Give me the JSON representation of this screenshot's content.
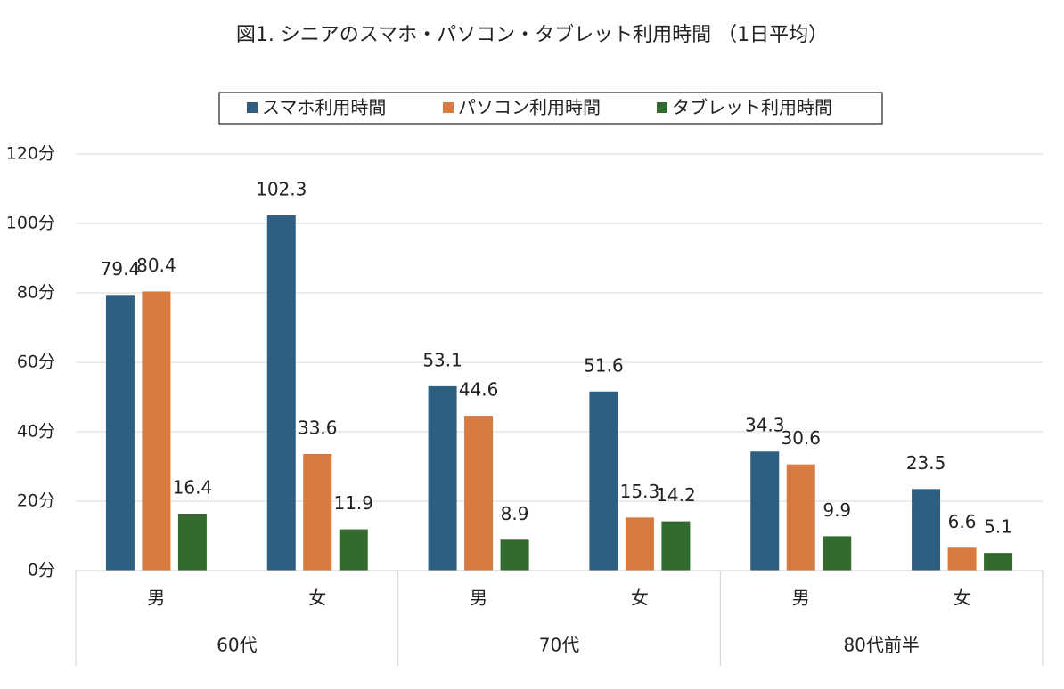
{
  "chart_data": {
    "type": "bar",
    "title": "図1. シニアのスマホ・パソコン・タブレット利用時間 （1日平均）",
    "categories": [
      "男",
      "女",
      "男",
      "女",
      "男",
      "女"
    ],
    "group_labels": [
      "60代",
      "70代",
      "80代前半"
    ],
    "series": [
      {
        "name": "スマホ利用時間",
        "color": "#2e5f80",
        "values": [
          79.4,
          102.3,
          53.1,
          51.6,
          34.3,
          23.5
        ]
      },
      {
        "name": "パソコン利用時間",
        "color": "#d97a40",
        "values": [
          80.4,
          33.6,
          44.6,
          15.3,
          30.6,
          6.6
        ]
      },
      {
        "name": "タブレット利用時間",
        "color": "#336b2e",
        "values": [
          16.4,
          11.9,
          8.9,
          14.2,
          9.9,
          5.1
        ]
      }
    ],
    "ylim": [
      0,
      120
    ],
    "yticks": [
      {
        "value": 0,
        "label": "0分"
      },
      {
        "value": 20,
        "label": "20分"
      },
      {
        "value": 40,
        "label": "40分"
      },
      {
        "value": 60,
        "label": "60分"
      },
      {
        "value": 80,
        "label": "80分"
      },
      {
        "value": 100,
        "label": "100分"
      },
      {
        "value": 120,
        "label": "120分"
      }
    ],
    "grid": true,
    "legend": "top"
  }
}
